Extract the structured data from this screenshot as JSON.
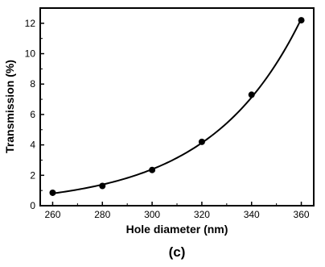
{
  "chart_data": {
    "type": "scatter",
    "title": "",
    "panel_label": "(c)",
    "xlabel": "Hole diameter (nm)",
    "ylabel": "Transmission (%)",
    "xlim": [
      255,
      365
    ],
    "ylim": [
      0,
      13
    ],
    "x_ticks": [
      260,
      280,
      300,
      320,
      340,
      360
    ],
    "y_ticks": [
      0,
      2,
      4,
      6,
      8,
      10,
      12
    ],
    "grid": false,
    "series": [
      {
        "x": [
          260,
          280,
          300,
          320,
          340,
          360
        ],
        "y": [
          0.85,
          1.3,
          2.35,
          4.2,
          7.3,
          12.2
        ],
        "marker": "filled-circle",
        "fit": "exponential-curve",
        "color": "#000000"
      }
    ]
  }
}
